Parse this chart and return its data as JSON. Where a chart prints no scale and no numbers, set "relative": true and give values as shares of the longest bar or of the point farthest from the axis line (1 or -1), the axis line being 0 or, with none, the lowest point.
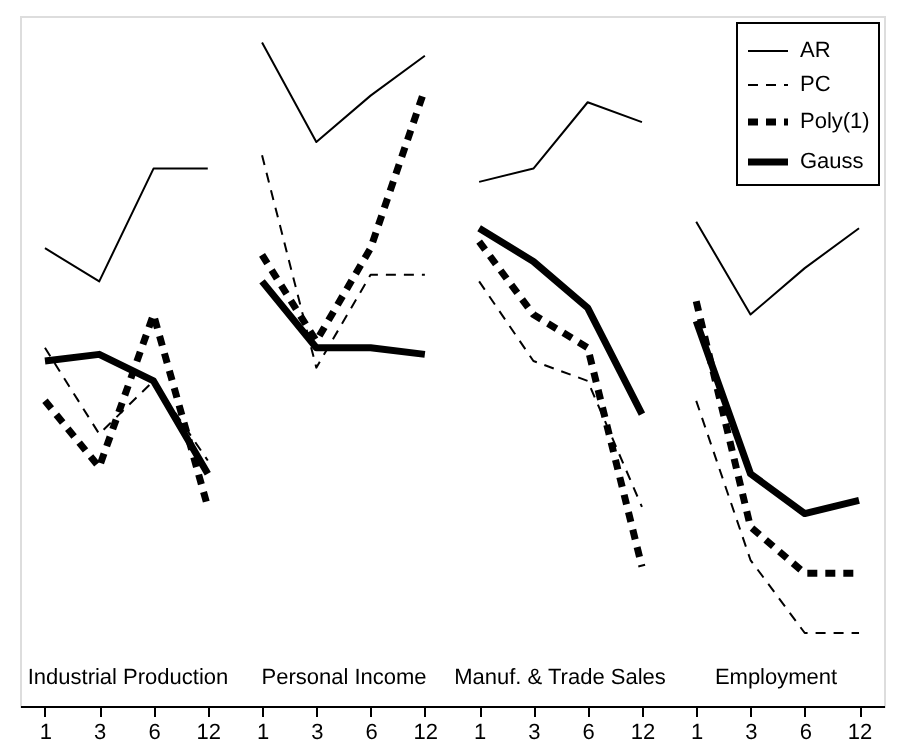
{
  "chart_data": {
    "type": "line",
    "relative": true,
    "categories": [
      "1",
      "3",
      "6",
      "12",
      "1",
      "3",
      "6",
      "12",
      "1",
      "3",
      "6",
      "12",
      "1",
      "3",
      "6",
      "12"
    ],
    "legend": "top right",
    "annotations": [
      "Industrial Production",
      "Personal Income",
      "Manuf. & Trade Sales",
      "Employment"
    ],
    "series": [
      {
        "color": "#000000",
        "line_style": "solid",
        "values": [
          0.69,
          0.64,
          0.81,
          0.81,
          null,
          null,
          null,
          null,
          null,
          null,
          null,
          null,
          null,
          null,
          null,
          null
        ]
      },
      {
        "color": "#000000",
        "line_style": "dashed",
        "values": [
          0.54,
          0.41,
          0.49,
          0.37,
          null,
          null,
          null,
          null,
          null,
          null,
          null,
          null,
          null,
          null,
          null,
          null
        ]
      },
      {
        "color": "#000000",
        "line_style": "dashed",
        "values": [
          0.46,
          0.36,
          0.59,
          0.3,
          null,
          null,
          null,
          null,
          null,
          null,
          null,
          null,
          null,
          null,
          null,
          null
        ]
      },
      {
        "color": "#000000",
        "line_style": "solid",
        "values": [
          0.52,
          0.53,
          0.49,
          0.35,
          null,
          null,
          null,
          null,
          null,
          null,
          null,
          null,
          null,
          null,
          null,
          null
        ]
      },
      {
        "color": "#000000",
        "line_style": "solid",
        "values": [
          null,
          null,
          null,
          null,
          1,
          0.85,
          0.92,
          0.98,
          null,
          null,
          null,
          null,
          null,
          null,
          null,
          null
        ]
      },
      {
        "color": "#000000",
        "line_style": "dashed",
        "values": [
          null,
          null,
          null,
          null,
          0.83,
          0.51,
          0.65,
          0.65,
          null,
          null,
          null,
          null,
          null,
          null,
          null,
          null
        ]
      },
      {
        "color": "#000000",
        "line_style": "dashed",
        "values": [
          null,
          null,
          null,
          null,
          0.68,
          0.55,
          0.69,
          0.93,
          null,
          null,
          null,
          null,
          null,
          null,
          null,
          null
        ]
      },
      {
        "color": "#000000",
        "line_style": "solid",
        "values": [
          null,
          null,
          null,
          null,
          0.64,
          0.54,
          0.54,
          0.53,
          null,
          null,
          null,
          null,
          null,
          null,
          null,
          null
        ]
      },
      {
        "color": "#000000",
        "line_style": "solid",
        "values": [
          null,
          null,
          null,
          null,
          null,
          null,
          null,
          null,
          0.79,
          0.81,
          0.91,
          0.88,
          null,
          null,
          null,
          null
        ]
      },
      {
        "color": "#000000",
        "line_style": "dashed",
        "values": [
          null,
          null,
          null,
          null,
          null,
          null,
          null,
          null,
          0.64,
          0.52,
          0.49,
          0.3,
          null,
          null,
          null,
          null
        ]
      },
      {
        "color": "#000000",
        "line_style": "dashed",
        "values": [
          null,
          null,
          null,
          null,
          null,
          null,
          null,
          null,
          0.7,
          0.59,
          0.54,
          0.21,
          null,
          null,
          null,
          null
        ]
      },
      {
        "color": "#000000",
        "line_style": "solid",
        "values": [
          null,
          null,
          null,
          null,
          null,
          null,
          null,
          null,
          0.72,
          0.67,
          0.6,
          0.44,
          null,
          null,
          null,
          null
        ]
      },
      {
        "name": "AR",
        "color": "#000000",
        "line_style": "solid",
        "values": [
          null,
          null,
          null,
          null,
          null,
          null,
          null,
          null,
          null,
          null,
          null,
          null,
          0.73,
          0.59,
          0.66,
          0.72
        ]
      },
      {
        "name": "PC",
        "color": "#000000",
        "line_style": "dashed",
        "values": [
          null,
          null,
          null,
          null,
          null,
          null,
          null,
          null,
          null,
          null,
          null,
          null,
          0.46,
          0.22,
          0.11,
          0.11
        ]
      },
      {
        "name": "Poly(1)",
        "color": "#000000",
        "line_style": "dashed",
        "values": [
          null,
          null,
          null,
          null,
          null,
          null,
          null,
          null,
          null,
          null,
          null,
          null,
          0.61,
          0.27,
          0.2,
          0.2
        ]
      },
      {
        "name": "Gauss",
        "color": "#000000",
        "line_style": "solid",
        "values": [
          null,
          null,
          null,
          null,
          null,
          null,
          null,
          null,
          null,
          null,
          null,
          null,
          0.58,
          0.35,
          0.29,
          0.31
        ]
      }
    ]
  }
}
